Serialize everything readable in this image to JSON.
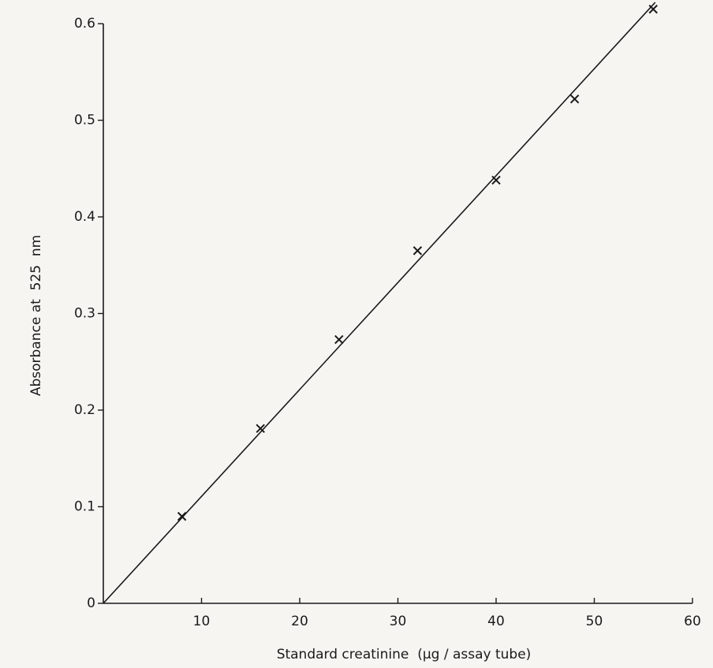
{
  "chart_data": {
    "type": "scatter",
    "xlabel": "Standard creatinine  (µg / assay tube)",
    "ylabel": "Absorbance at  525  nm",
    "series": [
      {
        "marker": "x",
        "color": "#1a1a1a",
        "x": [
          8,
          16,
          24,
          32,
          40,
          48,
          56
        ],
        "values": [
          0.09,
          0.181,
          0.273,
          0.365,
          0.438,
          0.522,
          0.615
        ]
      },
      {
        "marker": "line",
        "color": "#1a1a1a",
        "x": [
          0,
          56.2
        ],
        "values": [
          0,
          0.622
        ]
      }
    ],
    "xlim": [
      0,
      60
    ],
    "ylim": [
      0,
      0.6
    ],
    "xticks": [
      10,
      20,
      30,
      40,
      50,
      60
    ],
    "yticks": [
      0,
      0.1,
      0.2,
      0.3,
      0.4,
      0.5,
      0.6
    ],
    "grid": false
  }
}
